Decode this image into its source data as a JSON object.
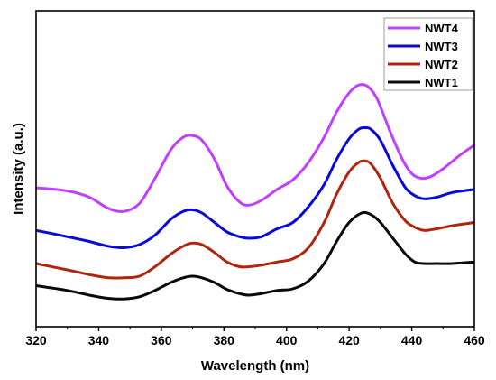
{
  "chart_data": {
    "type": "line",
    "title": "",
    "xlabel": "Wavelength (nm)",
    "ylabel": "Intensity (a.u.)",
    "xlim": [
      320,
      460
    ],
    "ylim": [
      0,
      1
    ],
    "x_ticks": [
      "320",
      "340",
      "360",
      "380",
      "400",
      "420",
      "440",
      "460"
    ],
    "y_ticks": [],
    "grid": false,
    "legend_position": "top-right",
    "series": [
      {
        "name": "NWT4",
        "color": "#bf40ff",
        "x": [
          320,
          330,
          337,
          343,
          348,
          353,
          358,
          363,
          367,
          370,
          373,
          377,
          381,
          385,
          388,
          392,
          397,
          402,
          407,
          412,
          416,
          420,
          423,
          426,
          429,
          433,
          437,
          440,
          443,
          446,
          450,
          455,
          460
        ],
        "y": [
          0.44,
          0.43,
          0.41,
          0.375,
          0.365,
          0.39,
          0.47,
          0.56,
          0.6,
          0.605,
          0.59,
          0.53,
          0.445,
          0.395,
          0.385,
          0.4,
          0.435,
          0.465,
          0.52,
          0.6,
          0.68,
          0.74,
          0.765,
          0.76,
          0.72,
          0.62,
          0.53,
          0.485,
          0.47,
          0.475,
          0.5,
          0.54,
          0.575
        ]
      },
      {
        "name": "NWT3",
        "color": "#0a0ad8",
        "x": [
          320,
          330,
          337,
          343,
          348,
          353,
          358,
          363,
          367,
          370,
          373,
          377,
          381,
          385,
          388,
          392,
          397,
          402,
          407,
          412,
          416,
          420,
          423,
          425,
          427,
          430,
          434,
          438,
          441,
          444,
          448,
          453,
          460
        ],
        "y": [
          0.305,
          0.285,
          0.27,
          0.255,
          0.25,
          0.26,
          0.29,
          0.34,
          0.365,
          0.37,
          0.36,
          0.33,
          0.3,
          0.285,
          0.28,
          0.285,
          0.31,
          0.33,
          0.38,
          0.45,
          0.53,
          0.595,
          0.625,
          0.63,
          0.625,
          0.59,
          0.51,
          0.44,
          0.415,
          0.405,
          0.41,
          0.425,
          0.435
        ]
      },
      {
        "name": "NWT2",
        "color": "#b02510",
        "x": [
          320,
          330,
          337,
          343,
          348,
          353,
          358,
          363,
          367,
          370,
          373,
          377,
          381,
          385,
          388,
          392,
          397,
          402,
          407,
          412,
          416,
          420,
          423,
          425,
          427,
          430,
          434,
          438,
          441,
          444,
          448,
          453,
          460
        ],
        "y": [
          0.2,
          0.18,
          0.165,
          0.155,
          0.155,
          0.16,
          0.19,
          0.23,
          0.255,
          0.265,
          0.26,
          0.235,
          0.205,
          0.19,
          0.19,
          0.195,
          0.205,
          0.215,
          0.25,
          0.33,
          0.42,
          0.49,
          0.52,
          0.525,
          0.515,
          0.47,
          0.39,
          0.335,
          0.315,
          0.305,
          0.31,
          0.32,
          0.33
        ]
      },
      {
        "name": "NWT1",
        "color": "#0a0a0a",
        "x": [
          320,
          330,
          337,
          343,
          348,
          353,
          358,
          363,
          367,
          370,
          373,
          377,
          381,
          385,
          388,
          392,
          397,
          402,
          407,
          412,
          416,
          420,
          424,
          427,
          430,
          434,
          438,
          441,
          444,
          448,
          453,
          460
        ],
        "y": [
          0.13,
          0.115,
          0.1,
          0.09,
          0.088,
          0.095,
          0.115,
          0.14,
          0.155,
          0.16,
          0.155,
          0.14,
          0.118,
          0.105,
          0.1,
          0.105,
          0.115,
          0.12,
          0.145,
          0.2,
          0.27,
          0.33,
          0.36,
          0.355,
          0.33,
          0.28,
          0.23,
          0.205,
          0.2,
          0.2,
          0.2,
          0.205
        ]
      }
    ]
  }
}
